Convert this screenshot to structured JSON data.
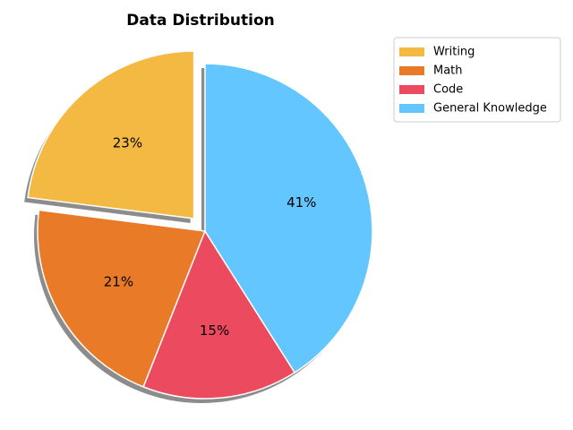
{
  "chart_data": {
    "type": "pie",
    "title": "Data Distribution",
    "categories": [
      "Writing",
      "Math",
      "Code",
      "General Knowledge"
    ],
    "values": [
      23,
      21,
      15,
      41
    ],
    "value_labels": [
      "23%",
      "21%",
      "15%",
      "41%"
    ],
    "colors": [
      "#f4b942",
      "#e97a27",
      "#ec4a5e",
      "#63c6fe"
    ],
    "explode": [
      0.1,
      0,
      0,
      0
    ],
    "shadow": true,
    "legend": "upper right"
  }
}
